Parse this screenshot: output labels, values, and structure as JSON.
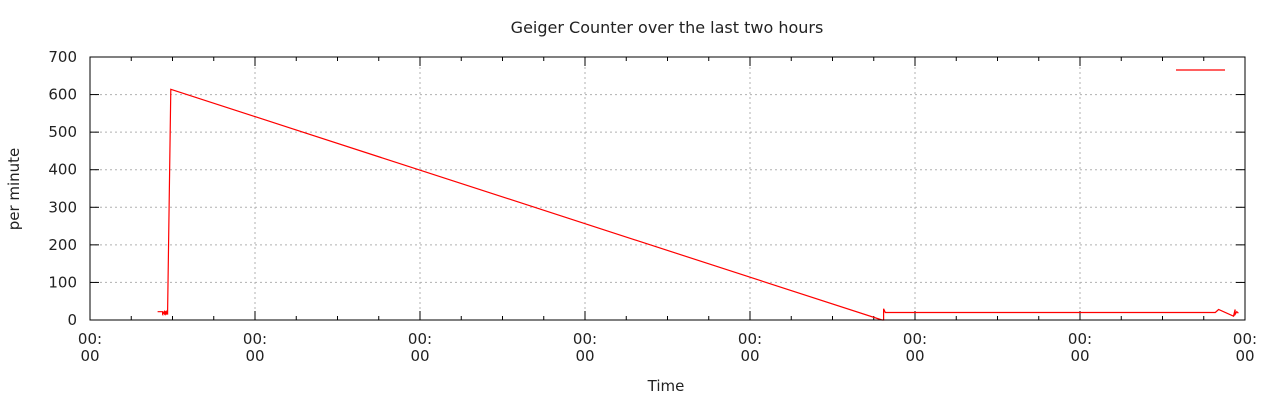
{
  "chart_data": {
    "type": "line",
    "title": "Geiger Counter over the last two hours",
    "xlabel": "Time",
    "ylabel": "per minute",
    "ylim": [
      0,
      700
    ],
    "yticks": [
      "0",
      "100",
      "200",
      "300",
      "400",
      "500",
      "600",
      "700"
    ],
    "xlim": [
      0,
      7
    ],
    "xticks": [
      {
        "line1": "00:",
        "line2": "00"
      },
      {
        "line1": "00:",
        "line2": "00"
      },
      {
        "line1": "00:",
        "line2": "00"
      },
      {
        "line1": "00:",
        "line2": "00"
      },
      {
        "line1": "00:",
        "line2": "00"
      },
      {
        "line1": "00:",
        "line2": "00"
      },
      {
        "line1": "00:",
        "line2": "00"
      },
      {
        "line1": "00:",
        "line2": "00"
      }
    ],
    "grid": true,
    "legend": "top-right",
    "series": [
      {
        "color": "#ff0000",
        "x": [
          0.41,
          0.44,
          0.44,
          0.45,
          0.45,
          0.46,
          0.46,
          0.47,
          0.47,
          0.45,
          0.45,
          0.47,
          0.47,
          0.47,
          0.49,
          4.8,
          4.81,
          4.81,
          4.82,
          4.83,
          6.82,
          6.84,
          6.93,
          6.94,
          6.94,
          6.95,
          6.96
        ],
        "y": [
          22,
          22,
          16,
          22,
          16,
          22,
          16,
          22,
          16,
          16,
          22,
          22,
          16,
          22,
          614,
          0,
          0,
          30,
          20,
          20,
          20,
          28,
          10,
          28,
          15,
          22,
          18
        ]
      }
    ]
  }
}
